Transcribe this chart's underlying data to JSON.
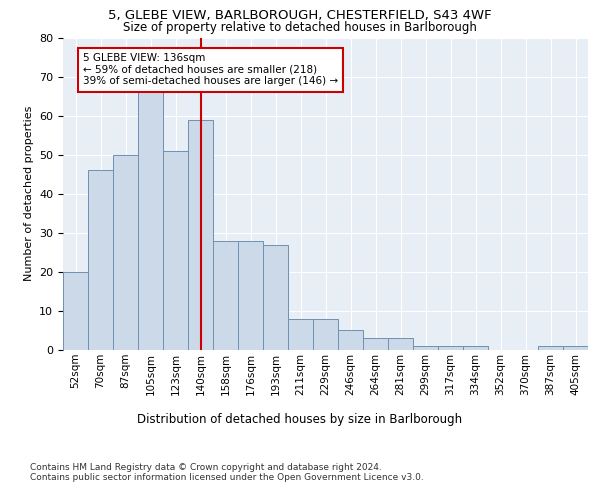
{
  "title_line1": "5, GLEBE VIEW, BARLBOROUGH, CHESTERFIELD, S43 4WF",
  "title_line2": "Size of property relative to detached houses in Barlborough",
  "xlabel": "Distribution of detached houses by size in Barlborough",
  "ylabel": "Number of detached properties",
  "categories": [
    "52sqm",
    "70sqm",
    "87sqm",
    "105sqm",
    "123sqm",
    "140sqm",
    "158sqm",
    "176sqm",
    "193sqm",
    "211sqm",
    "229sqm",
    "246sqm",
    "264sqm",
    "281sqm",
    "299sqm",
    "317sqm",
    "334sqm",
    "352sqm",
    "370sqm",
    "387sqm",
    "405sqm"
  ],
  "values": [
    20,
    46,
    50,
    66,
    51,
    59,
    28,
    28,
    27,
    8,
    8,
    5,
    3,
    3,
    1,
    1,
    1,
    0,
    0,
    1,
    1
  ],
  "bar_color": "#ccd9e8",
  "bar_edge_color": "#7090b0",
  "vline_x": 5,
  "vline_color": "#cc0000",
  "annotation_text": "5 GLEBE VIEW: 136sqm\n← 59% of detached houses are smaller (218)\n39% of semi-detached houses are larger (146) →",
  "annotation_box_color": "#ffffff",
  "annotation_box_edge": "#cc0000",
  "footer1": "Contains HM Land Registry data © Crown copyright and database right 2024.",
  "footer2": "Contains public sector information licensed under the Open Government Licence v3.0.",
  "ylim": [
    0,
    80
  ],
  "plot_background": "#e8eef6"
}
